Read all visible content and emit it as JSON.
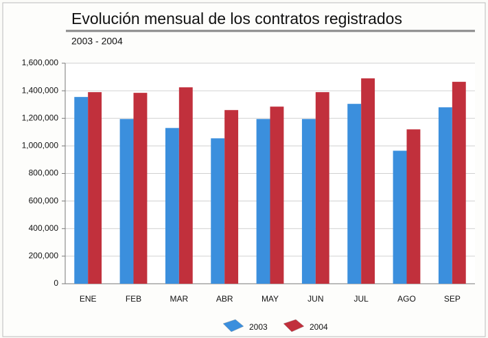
{
  "chart_data": {
    "type": "bar",
    "title": "Evolución mensual de los contratos registrados",
    "subtitle": "2003 - 2004",
    "categories": [
      "ENE",
      "FEB",
      "MAR",
      "ABR",
      "MAY",
      "JUN",
      "JUL",
      "AGO",
      "SEP"
    ],
    "series": [
      {
        "name": "2003",
        "color": "#3b8fdd",
        "values": [
          1355000,
          1195000,
          1130000,
          1055000,
          1195000,
          1195000,
          1305000,
          965000,
          1280000
        ]
      },
      {
        "name": "2004",
        "color": "#c1303c",
        "values": [
          1390000,
          1385000,
          1425000,
          1260000,
          1285000,
          1390000,
          1490000,
          1120000,
          1465000
        ]
      }
    ],
    "ylim": [
      0,
      1600000
    ],
    "yticks": [
      0,
      {
        "value": 200000,
        "label": "200,000"
      },
      {
        "value": 400000,
        "label": "400,000"
      },
      {
        "value": 600000,
        "label": "600,000"
      },
      {
        "value": 800000,
        "label": "800,000"
      },
      {
        "value": 1000000,
        "label": "1,000,000"
      },
      {
        "value": 1200000,
        "label": "1,200,000"
      },
      {
        "value": 1400000,
        "label": "1,400,000"
      },
      {
        "value": 1600000,
        "label": "1,600,000"
      }
    ],
    "grid": true,
    "legend": "bottom"
  }
}
